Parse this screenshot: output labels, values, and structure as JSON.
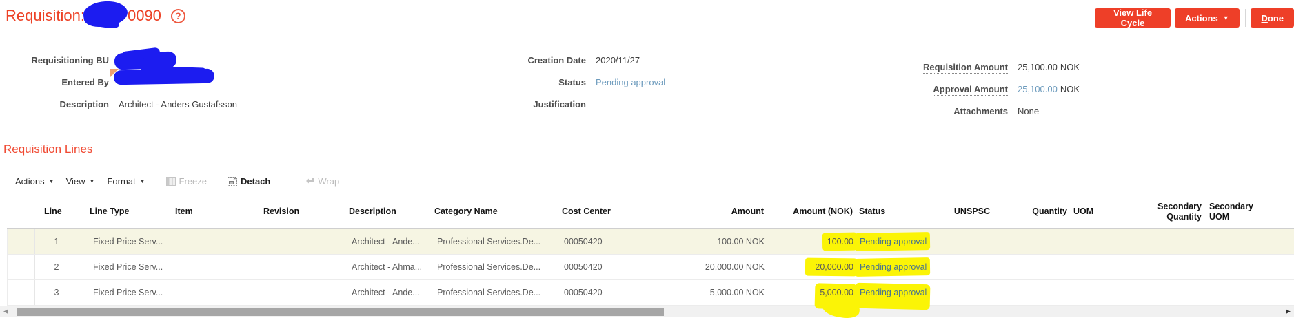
{
  "window": {
    "title_prefix": "Requisition:",
    "title_suffix": "0090"
  },
  "buttons": {
    "view_life_cycle": "View Life Cycle",
    "actions": "Actions",
    "done": "Done"
  },
  "summary": {
    "left": [
      {
        "label": "Requisitioning BU",
        "value": ""
      },
      {
        "label": "Entered By",
        "value": ""
      },
      {
        "label": "Description",
        "value": "Architect - Anders Gustafsson"
      }
    ],
    "middle": [
      {
        "label": "Creation Date",
        "value": "2020/11/27"
      },
      {
        "label": "Status",
        "value": "Pending approval"
      },
      {
        "label": "Justification",
        "value": ""
      }
    ],
    "right": [
      {
        "label": "Requisition Amount",
        "value": "25,100.00",
        "currency": "NOK"
      },
      {
        "label": "Approval Amount",
        "value": "25,100.00",
        "currency": "NOK"
      },
      {
        "label": "Attachments",
        "value": "None",
        "currency": ""
      }
    ]
  },
  "lines": {
    "heading": "Requisition Lines",
    "toolbar": {
      "actions": "Actions",
      "view": "View",
      "format": "Format",
      "freeze": "Freeze",
      "detach": "Detach",
      "wrap": "Wrap"
    },
    "columns": {
      "line": "Line",
      "line_type": "Line Type",
      "item": "Item",
      "revision": "Revision",
      "description": "Description",
      "category": "Category Name",
      "cost_center": "Cost Center",
      "amount": "Amount",
      "amount_nok": "Amount (NOK)",
      "status": "Status",
      "unspsc": "UNSPSC",
      "quantity": "Quantity",
      "uom": "UOM",
      "secondary_quantity": "Secondary Quantity",
      "secondary_uom": "Secondary UOM"
    },
    "rows": [
      {
        "line": "1",
        "line_type": "Fixed Price Serv...",
        "item": "",
        "revision": "",
        "description": "Architect - Ande...",
        "category": "Professional Services.De...",
        "cost_center": "00050420",
        "amount": "100.00 NOK",
        "amount_nok": "100.00",
        "status": "Pending approval",
        "unspsc": "",
        "quantity": "",
        "uom": "",
        "secondary_quantity": "",
        "secondary_uom": ""
      },
      {
        "line": "2",
        "line_type": "Fixed Price Serv...",
        "item": "",
        "revision": "",
        "description": "Architect - Ahma...",
        "category": "Professional Services.De...",
        "cost_center": "00050420",
        "amount": "20,000.00 NOK",
        "amount_nok": "20,000.00",
        "status": "Pending approval",
        "unspsc": "",
        "quantity": "",
        "uom": "",
        "secondary_quantity": "",
        "secondary_uom": ""
      },
      {
        "line": "3",
        "line_type": "Fixed Price Serv...",
        "item": "",
        "revision": "",
        "description": "Architect - Ande...",
        "category": "Professional Services.De...",
        "cost_center": "00050420",
        "amount": "5,000.00 NOK",
        "amount_nok": "5,000.00",
        "status": "Pending approval",
        "unspsc": "",
        "quantity": "",
        "uom": "",
        "secondary_quantity": "",
        "secondary_uom": ""
      }
    ]
  },
  "colors": {
    "accent_red": "#ee3f28",
    "link_blue": "#6d9bbd",
    "highlight_yellow": "#fbf406",
    "scribble_blue": "#1c1cf0",
    "selected_row_bg": "#f6f5e3"
  }
}
